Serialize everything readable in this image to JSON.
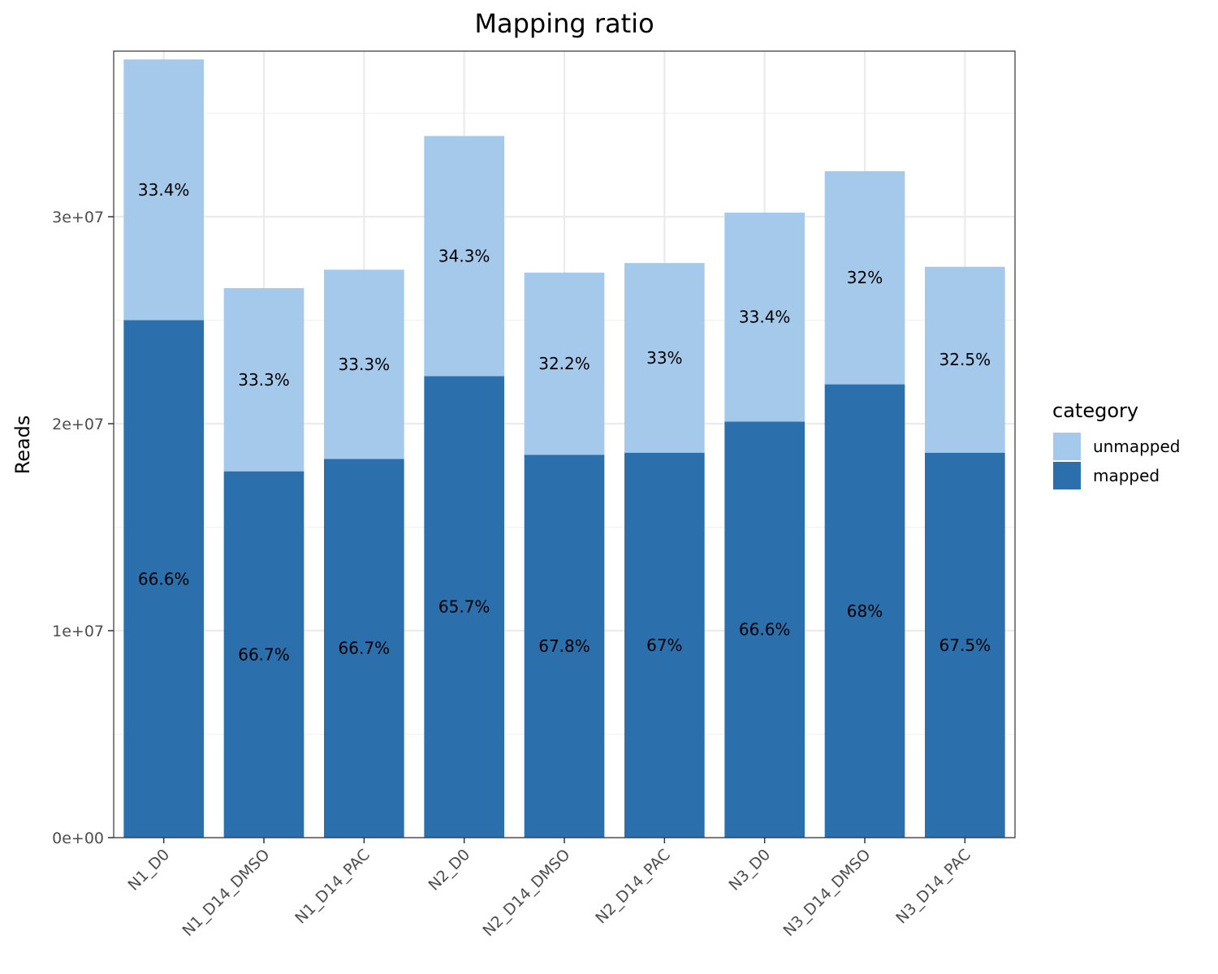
{
  "chart_data": {
    "type": "bar",
    "stacked": true,
    "title": "Mapping ratio",
    "xlabel": "",
    "ylabel": "Reads",
    "ylim": [
      0,
      38000000
    ],
    "y_ticks": [
      0,
      10000000,
      20000000,
      30000000
    ],
    "y_tick_labels": [
      "0e+00",
      "1e+07",
      "2e+07",
      "3e+07"
    ],
    "grid": true,
    "legend_position": "right",
    "legend_title": "category",
    "categories": [
      "N1_D0",
      "N1_D14_DMSO",
      "N1_D14_PAC",
      "N2_D0",
      "N2_D14_DMSO",
      "N2_D14_PAC",
      "N3_D0",
      "N3_D14_DMSO",
      "N3_D14_PAC"
    ],
    "series": [
      {
        "name": "mapped",
        "color": "#2b70ad",
        "values": [
          25000000,
          17700000,
          18300000,
          22300000,
          18500000,
          18600000,
          20100000,
          21900000,
          18600000
        ],
        "labels": [
          "66.6%",
          "66.7%",
          "66.7%",
          "65.7%",
          "67.8%",
          "67%",
          "66.6%",
          "68%",
          "67.5%"
        ]
      },
      {
        "name": "unmapped",
        "color": "#a4c9eb",
        "values": [
          12600000,
          8850000,
          9140000,
          11600000,
          8800000,
          9160000,
          10100000,
          10300000,
          8980000
        ],
        "labels": [
          "33.4%",
          "33.3%",
          "33.3%",
          "34.3%",
          "32.2%",
          "33%",
          "33.4%",
          "32%",
          "32.5%"
        ]
      }
    ],
    "legend_order": [
      "unmapped",
      "mapped"
    ]
  }
}
